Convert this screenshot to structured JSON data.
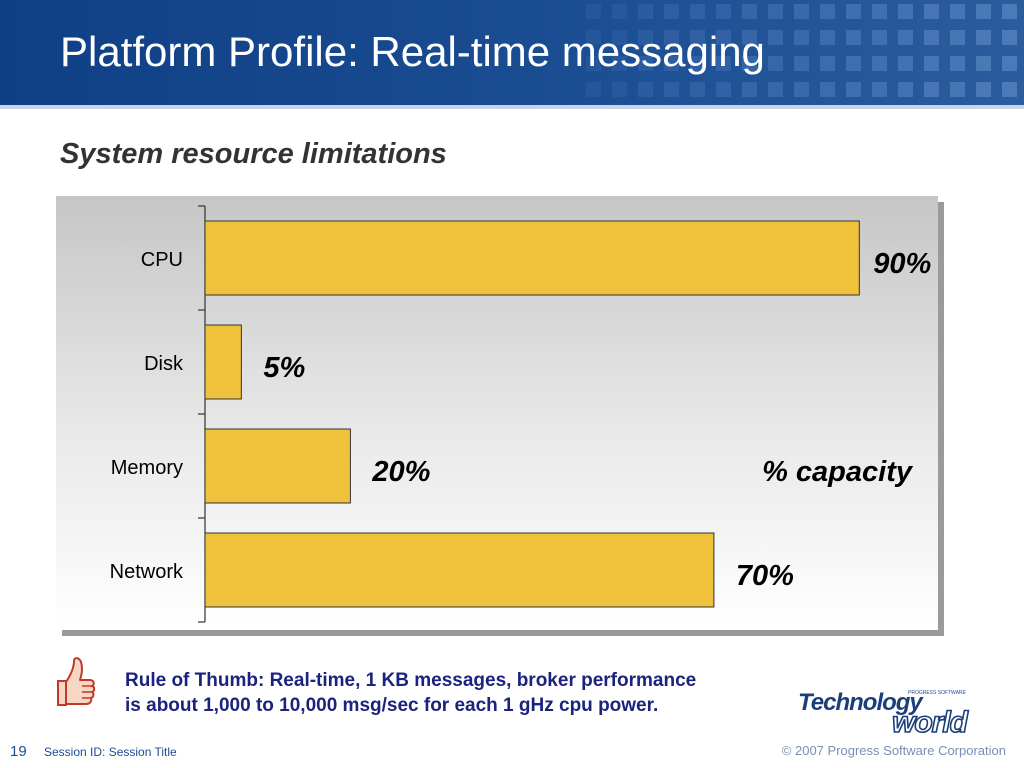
{
  "slide": {
    "title": "Platform Profile: Real-time messaging",
    "subtitle": "System resource limitations"
  },
  "colors": {
    "header_blue": "#1b4d93",
    "bar_fill": "#f0c23c",
    "bar_stroke": "#333333",
    "note_text": "#1a237e"
  },
  "chart_data": {
    "type": "bar",
    "orientation": "horizontal",
    "categories": [
      "CPU",
      "Disk",
      "Memory",
      "Network"
    ],
    "values": [
      90,
      5,
      20,
      70
    ],
    "data_labels": [
      "90%",
      "5%",
      "20%",
      "70%"
    ],
    "annotation": "% capacity",
    "xlim": [
      0,
      100
    ],
    "grid": false,
    "legend": "none"
  },
  "footer": {
    "thumb_icon": "thumbs-up-icon",
    "rule_line1": "Rule of Thumb: Real-time, 1 KB messages, broker performance",
    "rule_line2": "is about 1,000 to 10,000 msg/sec for each 1 gHz cpu power.",
    "logo_top": "PROGRESS SOFTWARE",
    "logo_word1": "Technology",
    "logo_word2": "world",
    "page_number": "19",
    "session": "Session ID: Session Title",
    "copyright": "© 2007 Progress Software Corporation"
  }
}
